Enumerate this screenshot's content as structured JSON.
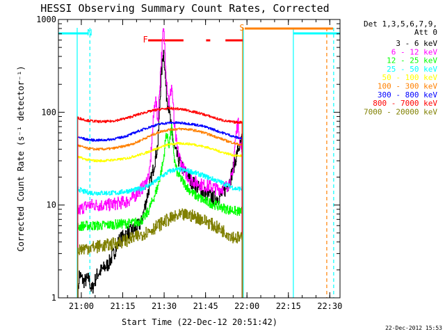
{
  "chart_data": {
    "type": "line",
    "title": "HESSI Observing Summary Count Rates, Corrected",
    "xlabel": "Start Time (22-Dec-12 20:51:42)",
    "ylabel": "Corrected Count Rate (s⁻¹ detector⁻¹)",
    "y_scale": "log",
    "ylim": [
      1,
      1000
    ],
    "xlim_minutes_from_start": [
      0,
      102
    ],
    "x_ticks": [
      "21:00",
      "21:15",
      "21:30",
      "21:45",
      "22:00",
      "22:15",
      "22:30"
    ],
    "x_tick_minutes": [
      8.3,
      23.3,
      38.3,
      53.3,
      68.3,
      83.3,
      98.3
    ],
    "y_ticks": [
      "1",
      "10",
      "100",
      "1000"
    ],
    "y_tick_values": [
      1,
      10,
      100,
      1000
    ],
    "grid": false,
    "legend_position": "right",
    "legend_header": [
      "Det 1,3,5,6,7,9,",
      "Att 0"
    ],
    "timestamp": "22-Dec-2012 15:53",
    "annotations": [
      {
        "text": "N",
        "minute": 11.3,
        "color": "#00ffff"
      },
      {
        "text": "S",
        "minute": 66.5,
        "color": "#ff8000"
      },
      {
        "text": "F",
        "minute": 31.5,
        "color": "#ff0000"
      }
    ],
    "flare_intervals": [
      [
        32.5,
        45.3
      ],
      [
        53.5,
        55.0
      ],
      [
        60.5,
        66.8
      ]
    ],
    "night_intervals": [
      [
        -1,
        11.0
      ],
      [
        85.0,
        102
      ]
    ],
    "saa_intervals": [
      [
        67.5,
        99.5
      ]
    ],
    "vertical_markers": [
      {
        "minute": 11.4,
        "color": "#00ffff",
        "dashed": true
      },
      {
        "minute": 6.8,
        "color": "#00ffff",
        "dashed": false
      },
      {
        "minute": 67.0,
        "color": "#00ffff",
        "dashed": false
      },
      {
        "minute": 66.7,
        "color": "#ff8000",
        "dashed": false
      },
      {
        "minute": 85.1,
        "color": "#00ffff",
        "dashed": false
      },
      {
        "minute": 97.2,
        "color": "#ff8000",
        "dashed": true
      },
      {
        "minute": 99.7,
        "color": "#00ffff",
        "dashed": true
      }
    ],
    "series": [
      {
        "name": "3 - 6 keV",
        "color": "#000000",
        "points": [
          [
            7,
            1
          ],
          [
            7.5,
            1.8
          ],
          [
            9,
            1.5
          ],
          [
            11,
            1.6
          ],
          [
            12,
            1.2
          ],
          [
            14,
            1.8
          ],
          [
            18,
            2.3
          ],
          [
            20,
            3.0
          ],
          [
            22,
            4.2
          ],
          [
            25,
            5.0
          ],
          [
            28,
            5.6
          ],
          [
            30,
            6.5
          ],
          [
            32,
            12
          ],
          [
            34,
            22
          ],
          [
            36,
            45
          ],
          [
            37,
            200
          ],
          [
            38,
            480
          ],
          [
            38.5,
            300
          ],
          [
            39,
            160
          ],
          [
            40,
            110
          ],
          [
            41,
            60
          ],
          [
            42,
            40
          ],
          [
            44,
            28
          ],
          [
            46,
            22
          ],
          [
            48,
            18
          ],
          [
            50,
            16
          ],
          [
            52,
            14
          ],
          [
            54,
            13
          ],
          [
            56,
            12
          ],
          [
            58,
            12
          ],
          [
            60,
            14
          ],
          [
            62,
            18
          ],
          [
            64,
            30
          ],
          [
            65,
            40
          ],
          [
            66,
            45
          ],
          [
            66.6,
            55
          ]
        ]
      },
      {
        "name": "6 - 12 keV",
        "color": "#ff00ff",
        "points": [
          [
            7,
            8.5
          ],
          [
            9,
            9.5
          ],
          [
            11,
            10
          ],
          [
            14,
            10
          ],
          [
            18,
            10
          ],
          [
            22,
            10.5
          ],
          [
            25,
            11
          ],
          [
            27,
            12
          ],
          [
            29,
            14
          ],
          [
            31,
            16
          ],
          [
            33,
            22
          ],
          [
            34,
            60
          ],
          [
            35,
            150
          ],
          [
            36,
            80
          ],
          [
            37,
            300
          ],
          [
            38,
            800
          ],
          [
            38.5,
            500
          ],
          [
            39,
            250
          ],
          [
            40,
            120
          ],
          [
            41,
            200
          ],
          [
            42,
            70
          ],
          [
            43,
            40
          ],
          [
            45,
            25
          ],
          [
            47,
            20
          ],
          [
            49,
            18
          ],
          [
            51,
            17
          ],
          [
            53,
            16
          ],
          [
            55,
            16
          ],
          [
            57,
            15
          ],
          [
            59,
            15
          ],
          [
            61,
            16
          ],
          [
            63,
            20
          ],
          [
            64,
            50
          ],
          [
            65,
            80
          ],
          [
            66,
            40
          ],
          [
            66.6,
            45
          ]
        ]
      },
      {
        "name": "12 - 25 keV",
        "color": "#00ff00",
        "points": [
          [
            7,
            5.8
          ],
          [
            9,
            6.0
          ],
          [
            12,
            6.0
          ],
          [
            15,
            6.0
          ],
          [
            18,
            6.1
          ],
          [
            21,
            6.2
          ],
          [
            24,
            6.3
          ],
          [
            27,
            6.4
          ],
          [
            30,
            6.8
          ],
          [
            32,
            8
          ],
          [
            34,
            11
          ],
          [
            36,
            16
          ],
          [
            38,
            30
          ],
          [
            39,
            60
          ],
          [
            40,
            45
          ],
          [
            41,
            70
          ],
          [
            42,
            30
          ],
          [
            43,
            22
          ],
          [
            45,
            18
          ],
          [
            47,
            15
          ],
          [
            49,
            13
          ],
          [
            51,
            12
          ],
          [
            53,
            11
          ],
          [
            55,
            10.5
          ],
          [
            57,
            10
          ],
          [
            59,
            9.5
          ],
          [
            61,
            9
          ],
          [
            63,
            8.8
          ],
          [
            65,
            8.5
          ],
          [
            66.6,
            8.5
          ]
        ]
      },
      {
        "name": "25 - 50 keV",
        "color": "#00ffff",
        "points": [
          [
            7,
            15
          ],
          [
            9,
            14
          ],
          [
            12,
            13.5
          ],
          [
            15,
            13.5
          ],
          [
            18,
            13.5
          ],
          [
            21,
            13.5
          ],
          [
            24,
            14
          ],
          [
            27,
            14.5
          ],
          [
            30,
            15
          ],
          [
            32,
            16
          ],
          [
            34,
            17
          ],
          [
            36,
            19
          ],
          [
            38,
            21
          ],
          [
            40,
            23
          ],
          [
            42,
            24
          ],
          [
            44,
            24
          ],
          [
            46,
            23.5
          ],
          [
            48,
            23
          ],
          [
            50,
            22
          ],
          [
            52,
            21
          ],
          [
            54,
            20
          ],
          [
            56,
            19
          ],
          [
            58,
            18
          ],
          [
            60,
            17
          ],
          [
            62,
            16
          ],
          [
            64,
            15
          ],
          [
            66.6,
            15
          ]
        ]
      },
      {
        "name": "50 - 100 keV",
        "color": "#ffff00",
        "points": [
          [
            7,
            33
          ],
          [
            10,
            31
          ],
          [
            13,
            30
          ],
          [
            16,
            30
          ],
          [
            19,
            30.5
          ],
          [
            22,
            31
          ],
          [
            25,
            32
          ],
          [
            28,
            34
          ],
          [
            31,
            36
          ],
          [
            34,
            39
          ],
          [
            37,
            42
          ],
          [
            40,
            45
          ],
          [
            43,
            46
          ],
          [
            46,
            46
          ],
          [
            49,
            45
          ],
          [
            52,
            43
          ],
          [
            55,
            41
          ],
          [
            58,
            38
          ],
          [
            61,
            36
          ],
          [
            64,
            34
          ],
          [
            66.6,
            34
          ]
        ]
      },
      {
        "name": "100 - 300 keV",
        "color": "#ff8000",
        "points": [
          [
            7,
            44
          ],
          [
            10,
            41
          ],
          [
            13,
            40
          ],
          [
            16,
            40
          ],
          [
            19,
            40.5
          ],
          [
            22,
            42
          ],
          [
            25,
            44
          ],
          [
            28,
            47
          ],
          [
            31,
            52
          ],
          [
            34,
            57
          ],
          [
            37,
            62
          ],
          [
            40,
            65
          ],
          [
            43,
            66
          ],
          [
            46,
            66
          ],
          [
            49,
            64
          ],
          [
            52,
            61
          ],
          [
            55,
            57
          ],
          [
            58,
            53
          ],
          [
            61,
            49
          ],
          [
            64,
            46
          ],
          [
            66.6,
            44
          ]
        ]
      },
      {
        "name": "300 - 800 keV",
        "color": "#0000ff",
        "points": [
          [
            7,
            54
          ],
          [
            10,
            51
          ],
          [
            13,
            50
          ],
          [
            16,
            50
          ],
          [
            19,
            51
          ],
          [
            22,
            53
          ],
          [
            25,
            56
          ],
          [
            28,
            61
          ],
          [
            31,
            66
          ],
          [
            34,
            71
          ],
          [
            37,
            75
          ],
          [
            40,
            77
          ],
          [
            43,
            77
          ],
          [
            46,
            76
          ],
          [
            49,
            74
          ],
          [
            52,
            71
          ],
          [
            55,
            67
          ],
          [
            58,
            62
          ],
          [
            61,
            58
          ],
          [
            64,
            54
          ],
          [
            66.6,
            52
          ]
        ]
      },
      {
        "name": "800 - 7000 keV",
        "color": "#ff0000",
        "points": [
          [
            7,
            87
          ],
          [
            10,
            82
          ],
          [
            13,
            80
          ],
          [
            16,
            79
          ],
          [
            19,
            80
          ],
          [
            22,
            83
          ],
          [
            25,
            87
          ],
          [
            28,
            93
          ],
          [
            31,
            99
          ],
          [
            34,
            104
          ],
          [
            37,
            108
          ],
          [
            40,
            110
          ],
          [
            43,
            109
          ],
          [
            46,
            106
          ],
          [
            49,
            101
          ],
          [
            52,
            96
          ],
          [
            55,
            90
          ],
          [
            58,
            84
          ],
          [
            61,
            80
          ],
          [
            64,
            78
          ],
          [
            66.6,
            78
          ]
        ]
      },
      {
        "name": "7000 - 20000 keV",
        "color": "#808000",
        "points": [
          [
            7,
            3.3
          ],
          [
            9,
            3.4
          ],
          [
            12,
            3.5
          ],
          [
            15,
            3.6
          ],
          [
            18,
            3.7
          ],
          [
            21,
            3.9
          ],
          [
            24,
            4.1
          ],
          [
            27,
            4.4
          ],
          [
            30,
            4.8
          ],
          [
            33,
            5.3
          ],
          [
            36,
            6.0
          ],
          [
            39,
            6.8
          ],
          [
            42,
            7.4
          ],
          [
            45,
            7.8
          ],
          [
            48,
            7.7
          ],
          [
            51,
            7.2
          ],
          [
            54,
            6.6
          ],
          [
            57,
            5.8
          ],
          [
            60,
            5.2
          ],
          [
            63,
            4.6
          ],
          [
            66.6,
            4.3
          ]
        ]
      }
    ]
  }
}
